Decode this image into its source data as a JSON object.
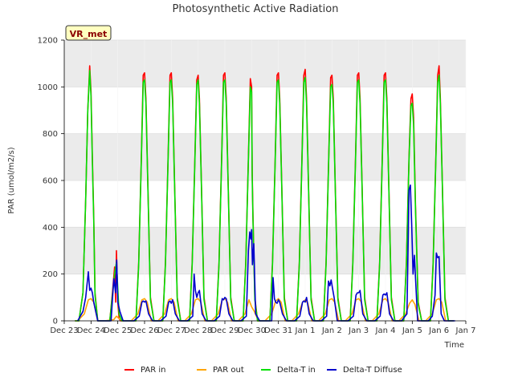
{
  "chart_data": {
    "type": "line",
    "title": "Photosynthetic Active Radiation",
    "ylabel": "PAR (umol/m2/s)",
    "xlabel": "Time",
    "badge": "VR_met",
    "ylim": [
      0,
      1200
    ],
    "yticks": [
      0,
      200,
      400,
      600,
      800,
      1000,
      1200
    ],
    "xlim": [
      0,
      15
    ],
    "xticks": [
      {
        "label": "Dec 23",
        "x": 0
      },
      {
        "label": "Dec 24",
        "x": 1
      },
      {
        "label": "Dec 25",
        "x": 2
      },
      {
        "label": "Dec 26",
        "x": 3
      },
      {
        "label": "Dec 27",
        "x": 4
      },
      {
        "label": "Dec 28",
        "x": 5
      },
      {
        "label": "Dec 29",
        "x": 6
      },
      {
        "label": "Dec 30",
        "x": 7
      },
      {
        "label": "Dec 31",
        "x": 8
      },
      {
        "label": "Jan 1",
        "x": 9
      },
      {
        "label": "Jan 2",
        "x": 10
      },
      {
        "label": "Jan 3",
        "x": 11
      },
      {
        "label": "Jan 4",
        "x": 12
      },
      {
        "label": "Jan 5",
        "x": 13
      },
      {
        "label": "Jan 6",
        "x": 14
      },
      {
        "label": "Jan 7",
        "x": 15
      }
    ],
    "grid": true,
    "legend_position": "bottom",
    "series": [
      {
        "name": "PAR in",
        "color": "#ff0000",
        "x": [
          0.4,
          0.55,
          0.7,
          0.8,
          0.88,
          0.95,
          1.0,
          1.05,
          1.1,
          1.15,
          1.25,
          1.4,
          1.55,
          1.7,
          1.8,
          1.88,
          1.92,
          1.95,
          2.0,
          2.05,
          2.1,
          2.15,
          2.3,
          2.5,
          2.68,
          2.78,
          2.88,
          2.95,
          3.0,
          3.05,
          3.12,
          3.22,
          3.35,
          3.55,
          3.68,
          3.78,
          3.88,
          3.95,
          4.0,
          4.05,
          4.12,
          4.22,
          4.35,
          4.55,
          4.68,
          4.78,
          4.88,
          4.95,
          5.0,
          5.05,
          5.12,
          5.22,
          5.35,
          5.55,
          5.68,
          5.78,
          5.88,
          5.95,
          6.0,
          6.05,
          6.12,
          6.22,
          6.35,
          6.55,
          6.68,
          6.78,
          6.88,
          6.95,
          7.0,
          7.02,
          7.05,
          7.08,
          7.12,
          7.22,
          7.35,
          7.55,
          7.68,
          7.78,
          7.88,
          7.95,
          8.0,
          8.05,
          8.12,
          8.22,
          8.35,
          8.55,
          8.68,
          8.78,
          8.88,
          8.95,
          9.0,
          9.05,
          9.12,
          9.22,
          9.35,
          9.55,
          9.68,
          9.78,
          9.88,
          9.95,
          10.0,
          10.05,
          10.12,
          10.22,
          10.35,
          10.55,
          10.68,
          10.78,
          10.88,
          10.95,
          11.0,
          11.05,
          11.12,
          11.22,
          11.35,
          11.55,
          11.68,
          11.78,
          11.88,
          11.95,
          12.0,
          12.05,
          12.12,
          12.22,
          12.35,
          12.55,
          12.68,
          12.78,
          12.88,
          12.95,
          13.0,
          13.05,
          13.12,
          13.22,
          13.35,
          13.55,
          13.68,
          13.78,
          13.88,
          13.95,
          14.0,
          14.05,
          14.12,
          14.22,
          14.35,
          14.55
        ],
        "values": [
          0,
          0,
          120,
          520,
          900,
          1090,
          980,
          700,
          450,
          120,
          0,
          0,
          0,
          0,
          120,
          230,
          80,
          300,
          80,
          10,
          0,
          0,
          0,
          0,
          0,
          250,
          700,
          1050,
          1060,
          950,
          600,
          100,
          0,
          0,
          0,
          250,
          700,
          1050,
          1060,
          950,
          600,
          100,
          0,
          0,
          0,
          250,
          700,
          1030,
          1050,
          950,
          600,
          100,
          0,
          0,
          0,
          250,
          700,
          1050,
          1060,
          950,
          600,
          100,
          0,
          0,
          0,
          250,
          700,
          1035,
          1000,
          640,
          450,
          300,
          100,
          0,
          0,
          0,
          0,
          250,
          700,
          1050,
          1060,
          950,
          600,
          100,
          0,
          0,
          0,
          250,
          700,
          1050,
          1075,
          950,
          600,
          100,
          0,
          0,
          0,
          250,
          700,
          1040,
          1050,
          950,
          600,
          100,
          0,
          0,
          0,
          250,
          700,
          1050,
          1060,
          950,
          600,
          100,
          0,
          0,
          0,
          250,
          700,
          1050,
          1060,
          950,
          600,
          100,
          0,
          0,
          0,
          250,
          700,
          950,
          970,
          870,
          500,
          80,
          0,
          0,
          0,
          250,
          700,
          1050,
          1090,
          950,
          600,
          100,
          0,
          0
        ]
      },
      {
        "name": "PAR out",
        "color": "#ffa500",
        "x": [
          0.5,
          0.75,
          0.9,
          1.0,
          1.1,
          1.25,
          1.5,
          1.85,
          1.95,
          2.05,
          2.15,
          2.5,
          2.75,
          2.9,
          3.0,
          3.1,
          3.25,
          3.5,
          3.75,
          3.9,
          4.0,
          4.1,
          4.25,
          4.5,
          4.75,
          4.9,
          5.0,
          5.1,
          5.25,
          5.5,
          5.75,
          5.9,
          6.0,
          6.1,
          6.25,
          6.5,
          6.75,
          6.9,
          7.0,
          7.1,
          7.25,
          7.5,
          7.75,
          7.9,
          8.0,
          8.1,
          8.25,
          8.5,
          8.75,
          8.9,
          9.0,
          9.1,
          9.25,
          9.5,
          9.75,
          9.9,
          10.0,
          10.1,
          10.25,
          10.5,
          10.75,
          10.9,
          11.0,
          11.1,
          11.25,
          11.5,
          11.75,
          11.9,
          12.0,
          12.1,
          12.25,
          12.5,
          12.75,
          12.9,
          13.0,
          13.1,
          13.25,
          13.5,
          13.75,
          13.9,
          14.0,
          14.1,
          14.25,
          14.5
        ],
        "values": [
          0,
          30,
          90,
          95,
          80,
          0,
          0,
          5,
          20,
          10,
          0,
          0,
          30,
          90,
          95,
          80,
          0,
          0,
          30,
          90,
          95,
          80,
          0,
          0,
          30,
          90,
          95,
          80,
          0,
          0,
          30,
          90,
          95,
          80,
          0,
          0,
          30,
          90,
          60,
          40,
          0,
          0,
          30,
          85,
          95,
          80,
          0,
          0,
          30,
          80,
          90,
          75,
          0,
          0,
          30,
          90,
          95,
          80,
          0,
          0,
          30,
          90,
          95,
          80,
          0,
          0,
          30,
          90,
          95,
          80,
          0,
          0,
          30,
          75,
          90,
          70,
          0,
          0,
          30,
          90,
          95,
          80,
          0,
          0
        ]
      },
      {
        "name": "Delta-T in",
        "color": "#00e000",
        "x": [
          0.4,
          0.55,
          0.7,
          0.8,
          0.88,
          0.95,
          1.0,
          1.05,
          1.1,
          1.15,
          1.25,
          1.4,
          1.55,
          1.7,
          1.8,
          1.88,
          1.95,
          2.05,
          2.15,
          2.5,
          2.68,
          2.78,
          2.88,
          2.95,
          3.0,
          3.05,
          3.12,
          3.22,
          3.35,
          3.55,
          3.68,
          3.78,
          3.88,
          3.95,
          4.0,
          4.05,
          4.12,
          4.22,
          4.35,
          4.55,
          4.68,
          4.78,
          4.88,
          4.95,
          5.0,
          5.05,
          5.12,
          5.22,
          5.35,
          5.55,
          5.68,
          5.78,
          5.88,
          5.95,
          6.0,
          6.05,
          6.12,
          6.22,
          6.35,
          6.55,
          6.68,
          6.78,
          6.88,
          6.95,
          7.0,
          7.02,
          7.05,
          7.08,
          7.12,
          7.22,
          7.35,
          7.55,
          7.68,
          7.78,
          7.88,
          7.95,
          8.0,
          8.05,
          8.12,
          8.22,
          8.35,
          8.55,
          8.68,
          8.78,
          8.88,
          8.95,
          9.0,
          9.05,
          9.12,
          9.22,
          9.35,
          9.55,
          9.68,
          9.78,
          9.88,
          9.95,
          10.0,
          10.05,
          10.12,
          10.22,
          10.35,
          10.55,
          10.68,
          10.78,
          10.88,
          10.95,
          11.0,
          11.05,
          11.12,
          11.22,
          11.35,
          11.55,
          11.68,
          11.78,
          11.88,
          11.95,
          12.0,
          12.05,
          12.12,
          12.22,
          12.35,
          12.55,
          12.68,
          12.78,
          12.88,
          12.95,
          13.0,
          13.05,
          13.12,
          13.22,
          13.35,
          13.55,
          13.68,
          13.78,
          13.88,
          13.95,
          14.0,
          14.05,
          14.12,
          14.22,
          14.35,
          14.55
        ],
        "values": [
          0,
          0,
          120,
          520,
          900,
          1070,
          960,
          680,
          430,
          110,
          0,
          0,
          0,
          0,
          110,
          200,
          250,
          30,
          0,
          0,
          0,
          240,
          690,
          1020,
          1030,
          930,
          590,
          90,
          0,
          0,
          0,
          240,
          690,
          1020,
          1030,
          930,
          590,
          90,
          0,
          0,
          0,
          240,
          690,
          1010,
          1030,
          930,
          590,
          90,
          0,
          0,
          0,
          240,
          690,
          1020,
          1030,
          930,
          590,
          90,
          0,
          0,
          0,
          240,
          690,
          1000,
          980,
          620,
          430,
          280,
          90,
          0,
          0,
          0,
          0,
          240,
          690,
          1020,
          1030,
          930,
          590,
          90,
          0,
          0,
          0,
          240,
          690,
          1020,
          1040,
          930,
          590,
          90,
          0,
          0,
          0,
          240,
          690,
          1000,
          1010,
          930,
          590,
          90,
          0,
          0,
          0,
          240,
          690,
          1020,
          1030,
          930,
          590,
          90,
          0,
          0,
          0,
          240,
          690,
          1020,
          1030,
          930,
          590,
          90,
          0,
          0,
          0,
          240,
          690,
          920,
          930,
          840,
          480,
          70,
          0,
          0,
          0,
          240,
          690,
          1020,
          1050,
          930,
          590,
          90,
          0,
          0
        ]
      },
      {
        "name": "Delta-T Diffuse",
        "color": "#0000cc",
        "x": [
          0.5,
          0.7,
          0.8,
          0.9,
          0.95,
          1.0,
          1.05,
          1.1,
          1.25,
          1.5,
          1.75,
          1.85,
          1.92,
          1.96,
          2.0,
          2.08,
          2.2,
          2.6,
          2.8,
          2.9,
          2.95,
          3.0,
          3.05,
          3.15,
          3.3,
          3.6,
          3.8,
          3.9,
          3.95,
          4.0,
          4.05,
          4.15,
          4.3,
          4.6,
          4.8,
          4.85,
          4.9,
          4.95,
          5.0,
          5.05,
          5.15,
          5.3,
          5.6,
          5.8,
          5.9,
          5.95,
          6.0,
          6.05,
          6.15,
          6.3,
          6.6,
          6.8,
          6.88,
          6.93,
          6.97,
          7.0,
          7.03,
          7.08,
          7.15,
          7.3,
          7.6,
          7.75,
          7.8,
          7.85,
          7.9,
          7.95,
          8.0,
          8.05,
          8.15,
          8.3,
          8.6,
          8.8,
          8.9,
          8.95,
          9.0,
          9.05,
          9.15,
          9.3,
          9.6,
          9.8,
          9.87,
          9.92,
          9.97,
          10.02,
          10.08,
          10.2,
          10.6,
          10.8,
          10.9,
          10.95,
          11.0,
          11.05,
          11.15,
          11.3,
          11.6,
          11.8,
          11.9,
          11.95,
          12.0,
          12.05,
          12.15,
          12.3,
          12.6,
          12.8,
          12.88,
          12.93,
          12.98,
          13.03,
          13.08,
          13.2,
          13.6,
          13.75,
          13.85,
          13.9,
          13.95,
          14.0,
          14.08,
          14.2,
          14.6
        ],
        "values": [
          0,
          40,
          100,
          210,
          130,
          140,
          120,
          80,
          0,
          0,
          0,
          180,
          120,
          260,
          80,
          40,
          0,
          0,
          20,
          80,
          85,
          80,
          85,
          30,
          0,
          0,
          20,
          80,
          85,
          75,
          90,
          30,
          0,
          0,
          20,
          200,
          130,
          100,
          120,
          130,
          30,
          0,
          0,
          20,
          95,
          90,
          100,
          95,
          30,
          0,
          0,
          20,
          300,
          380,
          350,
          390,
          240,
          330,
          30,
          0,
          0,
          0,
          185,
          95,
          80,
          75,
          90,
          80,
          30,
          0,
          0,
          20,
          80,
          85,
          80,
          100,
          30,
          0,
          0,
          20,
          170,
          150,
          175,
          140,
          100,
          0,
          0,
          20,
          110,
          120,
          120,
          130,
          30,
          0,
          0,
          20,
          110,
          115,
          110,
          120,
          30,
          0,
          0,
          30,
          560,
          580,
          400,
          200,
          280,
          0,
          0,
          20,
          110,
          290,
          270,
          275,
          30,
          0,
          0
        ]
      }
    ]
  }
}
